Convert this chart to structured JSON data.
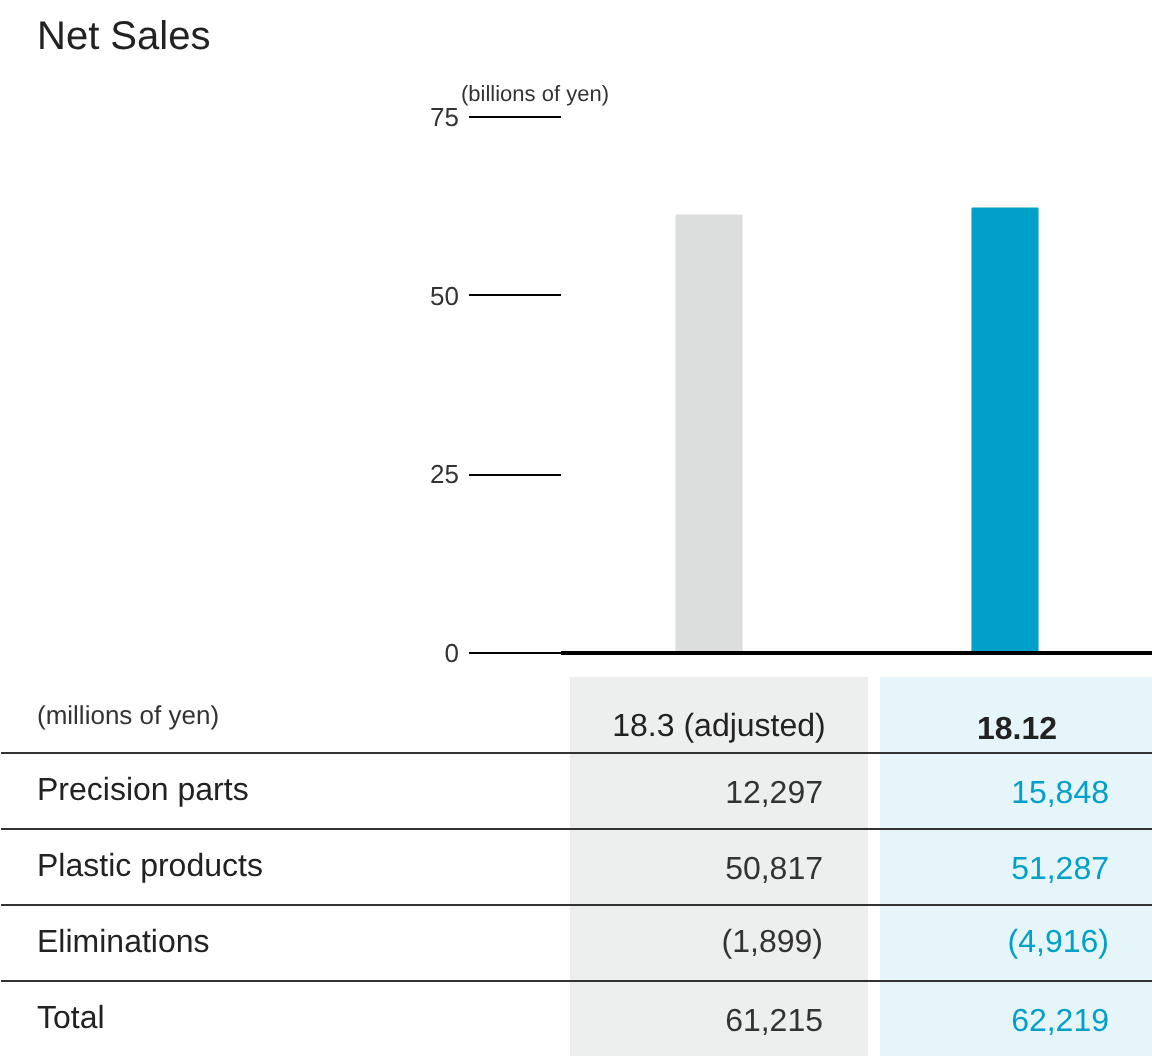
{
  "chart_data": {
    "type": "bar",
    "title": "Net Sales",
    "ylabel": "(billions of yen)",
    "categories": [
      "18.3 (adjusted)",
      "18.12"
    ],
    "values": [
      61.2,
      62.2
    ],
    "colors": [
      "#dcdddd",
      "#00a0c9"
    ],
    "ylim": [
      0,
      75
    ],
    "yticks": [
      0,
      25,
      50,
      75
    ],
    "annotations": [
      "(millions of yen)",
      "Precision parts",
      "12,297",
      "15,848",
      "Plastic products",
      "50,817",
      "51,287",
      "Eliminations",
      "(1,899)",
      "(4,916)",
      "Total",
      "61,215",
      "62,219"
    ]
  }
}
